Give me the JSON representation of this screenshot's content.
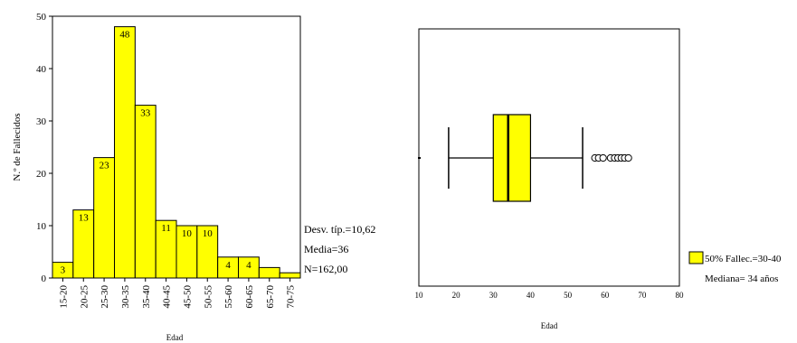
{
  "chart_data": [
    {
      "type": "bar",
      "categories": [
        "15-20",
        "20-25",
        "25-30",
        "30-35",
        "35-40",
        "40-45",
        "45-50",
        "50-55",
        "55-60",
        "60-65",
        "65-70",
        "70-75"
      ],
      "values": [
        3,
        13,
        23,
        48,
        33,
        11,
        10,
        10,
        4,
        4,
        2,
        1
      ],
      "data_labels": [
        "3",
        "13",
        "23",
        "48",
        "33",
        "11",
        "10",
        "10",
        "4",
        "4",
        "",
        ""
      ],
      "ylabel": "N.º de Fallecidos",
      "xlabel": "Edad",
      "yticks": [
        "0",
        "10",
        "20",
        "30",
        "40",
        "50"
      ],
      "ylim": [
        0,
        50
      ],
      "bar_color": "#ffff00",
      "stats": [
        "Desv. típ.=10,62",
        "Media=36",
        "N=162,00"
      ]
    },
    {
      "type": "boxplot",
      "xlabel": "Edad",
      "xticks": [
        "10",
        "20",
        "30",
        "40",
        "50",
        "60",
        "70",
        "80"
      ],
      "xlim": [
        10,
        80
      ],
      "whisker_low": 18,
      "q1": 30,
      "median": 34,
      "q3": 40,
      "whisker_high": 54,
      "outliers": [
        57.3,
        58.3,
        59.5,
        61.5,
        62.6,
        63.5,
        64.4,
        65.3,
        66.3
      ],
      "box_color": "#ffff00",
      "legend": [
        "50% Fallec.=30-40",
        "Mediana= 34 años"
      ]
    }
  ]
}
